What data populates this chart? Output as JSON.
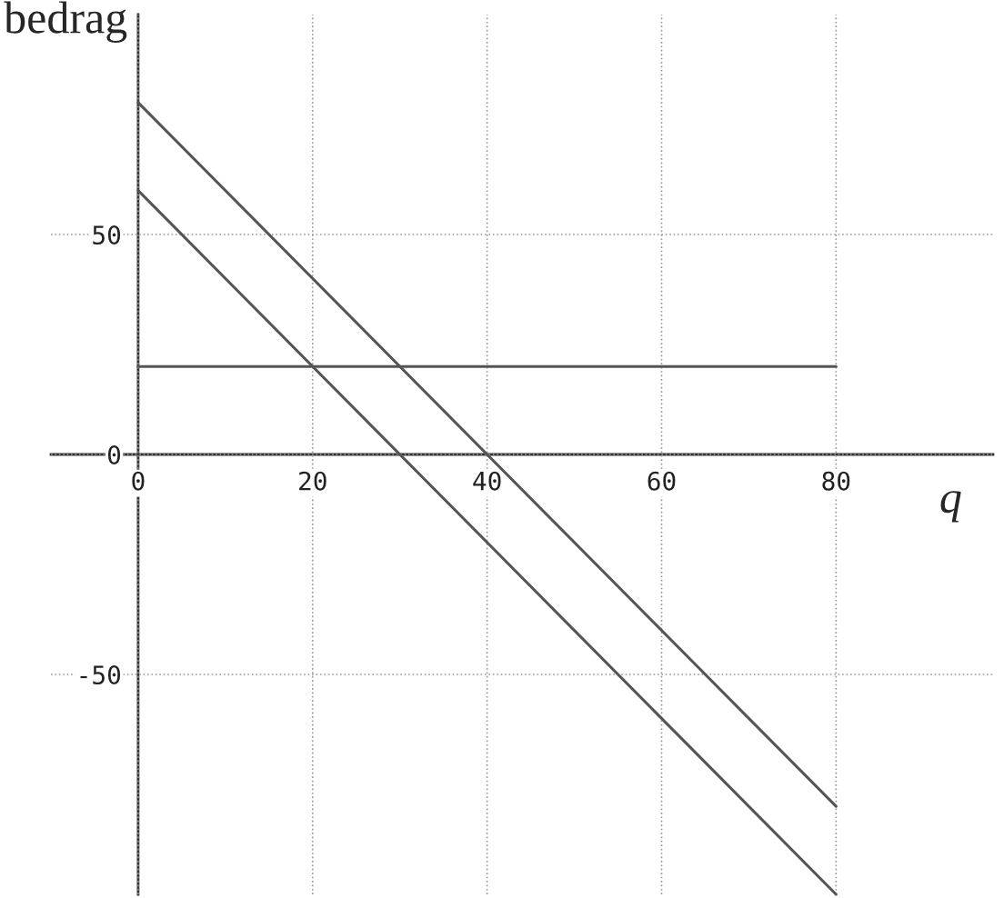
{
  "chart_data": {
    "type": "line",
    "xlabel": "q",
    "ylabel": "bedrag",
    "x": [
      0,
      80
    ],
    "series": [
      {
        "color": "#555555",
        "values": [
          80,
          -80
        ]
      },
      {
        "color": "#555555",
        "values": [
          60,
          -100
        ]
      },
      {
        "color": "#555555",
        "values": [
          20,
          20
        ]
      }
    ],
    "xlim": [
      -10,
      98
    ],
    "ylim": [
      -100,
      100
    ],
    "xticks": [
      0,
      20,
      40,
      60,
      80
    ],
    "yticks": [
      -50,
      0,
      50
    ],
    "grid": true,
    "line_style": "solid",
    "marker": "none"
  }
}
